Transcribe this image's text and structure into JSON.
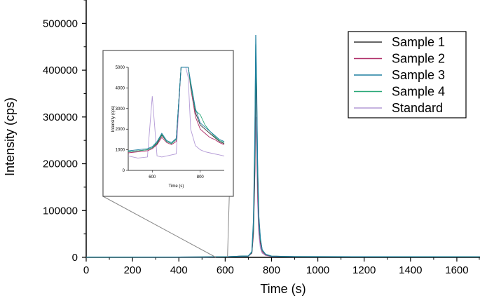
{
  "chart_data": [
    {
      "type": "line",
      "title": "",
      "xlabel": "Time (s)",
      "ylabel": "Intensity (cps)",
      "xlim": [
        0,
        1700
      ],
      "ylim": [
        0,
        550000
      ],
      "xticks": [
        0,
        200,
        400,
        600,
        800,
        1000,
        1200,
        1400,
        1600
      ],
      "yticks": [
        0,
        100000,
        200000,
        300000,
        400000,
        500000
      ],
      "xtick_labels": [
        "0",
        "200",
        "400",
        "600",
        "800",
        "1000",
        "1200",
        "1400",
        "1600"
      ],
      "ytick_labels": [
        "0",
        "100000",
        "200000",
        "300000",
        "400000",
        "500000"
      ],
      "grid": false,
      "legend_position": "top-right",
      "x": [
        0,
        500,
        600,
        700,
        715,
        722,
        728,
        732,
        736,
        740,
        745,
        752,
        760,
        775,
        800,
        900,
        1700
      ],
      "series": [
        {
          "name": "Sample 1",
          "color": "#333333",
          "values": [
            500,
            800,
            1200,
            3000,
            10000,
            60000,
            200000,
            430000,
            300000,
            180000,
            80000,
            35000,
            15000,
            6000,
            2500,
            1500,
            1000
          ]
        },
        {
          "name": "Sample 2",
          "color": "#b0306a",
          "values": [
            500,
            800,
            1200,
            3000,
            9000,
            50000,
            180000,
            380000,
            330000,
            150000,
            70000,
            30000,
            12000,
            5000,
            2200,
            1400,
            1000
          ]
        },
        {
          "name": "Sample 3",
          "color": "#1e7fa0",
          "values": [
            500,
            800,
            1200,
            3000,
            12000,
            80000,
            260000,
            475000,
            360000,
            200000,
            90000,
            40000,
            16000,
            6500,
            2600,
            1500,
            1000
          ]
        },
        {
          "name": "Sample 4",
          "color": "#2aa878",
          "values": [
            500,
            800,
            1200,
            3000,
            11000,
            70000,
            240000,
            455000,
            340000,
            190000,
            85000,
            38000,
            15000,
            6200,
            2500,
            1500,
            1000
          ]
        },
        {
          "name": "Standard",
          "color": "#b39ad6",
          "values": [
            400,
            600,
            900,
            2500,
            9000,
            55000,
            190000,
            300000,
            220000,
            120000,
            50000,
            20000,
            9000,
            4000,
            1800,
            1200,
            900
          ]
        }
      ]
    },
    {
      "type": "line",
      "title": "",
      "xlabel": "Time (s)",
      "ylabel": "Intensity (cps)",
      "xlim": [
        500,
        900
      ],
      "ylim": [
        0,
        5000
      ],
      "xticks": [
        600,
        800
      ],
      "yticks": [
        0,
        1000,
        2000,
        3000,
        4000,
        5000
      ],
      "xtick_labels": [
        "600",
        "800"
      ],
      "ytick_labels": [
        "0",
        "1000",
        "2000",
        "3000",
        "4000",
        "5000"
      ],
      "x": [
        500,
        540,
        580,
        600,
        620,
        640,
        660,
        680,
        700,
        720,
        730,
        740,
        750,
        760,
        780,
        800,
        820,
        840,
        860,
        880,
        900
      ],
      "series": [
        {
          "name": "Sample 1",
          "color": "#333333",
          "values": [
            900,
            950,
            1000,
            1100,
            1300,
            1700,
            1400,
            1300,
            1500,
            5000,
            5000,
            5000,
            5000,
            4200,
            2800,
            2200,
            2000,
            1800,
            1600,
            1400,
            1300
          ]
        },
        {
          "name": "Sample 2",
          "color": "#b0306a",
          "values": [
            850,
            900,
            950,
            1050,
            1250,
            1600,
            1350,
            1250,
            1400,
            5000,
            5000,
            5000,
            5000,
            4000,
            2600,
            2000,
            1800,
            1600,
            1500,
            1350,
            1250
          ]
        },
        {
          "name": "Sample 3",
          "color": "#1e7fa0",
          "values": [
            950,
            1000,
            1050,
            1150,
            1400,
            1800,
            1450,
            1350,
            1550,
            5000,
            5000,
            5000,
            5000,
            4300,
            3000,
            2300,
            2100,
            1900,
            1700,
            1500,
            1400
          ]
        },
        {
          "name": "Sample 4",
          "color": "#2aa878",
          "values": [
            900,
            950,
            1000,
            1100,
            1350,
            1750,
            1400,
            1300,
            1500,
            5000,
            5000,
            5000,
            5000,
            4100,
            2900,
            2700,
            2200,
            1900,
            1650,
            1450,
            1350
          ]
        },
        {
          "name": "Standard",
          "color": "#b39ad6",
          "values": [
            700,
            600,
            650,
            3600,
            700,
            650,
            700,
            750,
            800,
            5000,
            5000,
            5000,
            4500,
            2000,
            1200,
            1000,
            900,
            850,
            800,
            750,
            700
          ]
        }
      ]
    }
  ]
}
